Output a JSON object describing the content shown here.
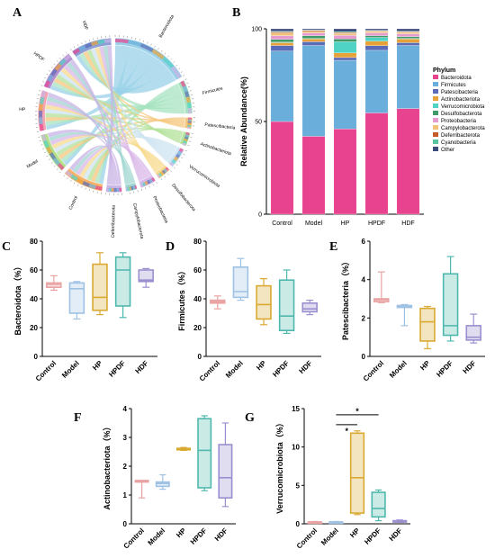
{
  "panel_letters": [
    "A",
    "B",
    "C",
    "D",
    "E",
    "F",
    "G"
  ],
  "chord": {
    "groups": [
      {
        "name": "HDF",
        "color": "#8b9fd6"
      },
      {
        "name": "HPDF",
        "color": "#b58ecf"
      },
      {
        "name": "HP",
        "color": "#f4a3b2"
      },
      {
        "name": "Model",
        "color": "#b4e08a"
      },
      {
        "name": "Control",
        "color": "#f6b26b"
      }
    ],
    "taxa": [
      {
        "name": "Bacteroidota",
        "color": "#9ad1e8"
      },
      {
        "name": "Firmicutes",
        "color": "#a7e3c0"
      },
      {
        "name": "Patescibacteria",
        "color": "#f5c77e"
      },
      {
        "name": "Actinobacteriota",
        "color": "#b3e29b"
      },
      {
        "name": "Verrucomicrobiota",
        "color": "#cfe4f2"
      },
      {
        "name": "Desulfobacterota",
        "color": "#f7d98c"
      },
      {
        "name": "Proteobacteria",
        "color": "#d9b7e8"
      },
      {
        "name": "Campylobacterota",
        "color": "#9fd6d0"
      },
      {
        "name": "Deferribacterota",
        "color": "#c9b3e6"
      }
    ]
  },
  "stacked": {
    "ylabel": "Relative Abundance(%)",
    "legend_title": "Phylum",
    "yticks": [
      0,
      50,
      100
    ],
    "categories": [
      "Control",
      "Model",
      "HP",
      "HPDF",
      "HDF"
    ],
    "series": [
      {
        "name": "Bacteroidota",
        "color": "#e8438f",
        "values": [
          50,
          42,
          46,
          55,
          57
        ]
      },
      {
        "name": "Firmicutes",
        "color": "#6aaedb",
        "values": [
          38,
          49,
          37,
          34,
          34
        ]
      },
      {
        "name": "Patescibacteria",
        "color": "#5a6bb8",
        "values": [
          3,
          2,
          1.5,
          2.5,
          1.5
        ]
      },
      {
        "name": "Actinobacteriota",
        "color": "#e7a23a",
        "values": [
          1.5,
          1.5,
          2.5,
          2.5,
          2
        ]
      },
      {
        "name": "Verrucomicrobiota",
        "color": "#4fd3c4",
        "values": [
          0.3,
          0.3,
          6,
          2,
          0.3
        ]
      },
      {
        "name": "Desulfobacterota",
        "color": "#3f9a68",
        "values": [
          1.5,
          1.5,
          1.5,
          1,
          1
        ]
      },
      {
        "name": "Proteobacteria",
        "color": "#e59bd0",
        "values": [
          2,
          1.5,
          2,
          1.5,
          1.5
        ]
      },
      {
        "name": "Campylobacterota",
        "color": "#f2c27a",
        "values": [
          1.5,
          0.8,
          1,
          0.8,
          0.8
        ]
      },
      {
        "name": "Deferribacterota",
        "color": "#c45a2a",
        "values": [
          0.5,
          0.5,
          0.5,
          0.3,
          0.3
        ]
      },
      {
        "name": "Cyanobacteria",
        "color": "#57c6a0",
        "values": [
          0.4,
          0.3,
          0.5,
          0.3,
          0.3
        ]
      },
      {
        "name": "Other",
        "color": "#3a4a7a",
        "values": [
          1.3,
          0.6,
          1.5,
          0.8,
          1.3
        ]
      }
    ]
  },
  "groups": [
    "Control",
    "Model",
    "HP",
    "HPDF",
    "HDF"
  ],
  "group_colors": [
    "#e9a3a3",
    "#9fc2e4",
    "#d9a931",
    "#4fb8ad",
    "#9c8fd0"
  ],
  "box_panels": [
    {
      "ylabel": "Bacteroidota（%）",
      "ylim": [
        0,
        80
      ],
      "yticks": [
        0,
        20,
        40,
        60,
        80
      ],
      "boxes": [
        [
          46,
          48,
          50,
          51,
          56
        ],
        [
          26,
          30,
          47,
          51,
          52
        ],
        [
          29,
          32,
          41,
          64,
          72
        ],
        [
          27,
          35,
          60,
          69,
          72
        ],
        [
          48,
          52,
          53,
          60,
          61
        ]
      ]
    },
    {
      "ylabel": "Firmicutes（%）",
      "ylim": [
        0,
        80
      ],
      "yticks": [
        0,
        20,
        40,
        60,
        80
      ],
      "boxes": [
        [
          33,
          37,
          38,
          39,
          42
        ],
        [
          39,
          41,
          45,
          62,
          68
        ],
        [
          22,
          26,
          36,
          49,
          54
        ],
        [
          16,
          18,
          28,
          53,
          60
        ],
        [
          29,
          31,
          33,
          37,
          39
        ]
      ]
    },
    {
      "ylabel": "Patescibacteria（%）",
      "ylim": [
        0,
        6
      ],
      "yticks": [
        0,
        2,
        4,
        6
      ],
      "boxes": [
        [
          2.8,
          2.85,
          2.95,
          3.0,
          4.4
        ],
        [
          1.6,
          2.55,
          2.6,
          2.65,
          2.7
        ],
        [
          0.4,
          0.8,
          1.8,
          2.5,
          2.6
        ],
        [
          0.8,
          1.1,
          1.6,
          4.3,
          5.2
        ],
        [
          0.7,
          0.85,
          1.0,
          1.6,
          2.2
        ]
      ]
    },
    {
      "ylabel": "Actinobacteriota（%）",
      "ylim": [
        0,
        4
      ],
      "yticks": [
        0,
        1,
        2,
        3,
        4
      ],
      "boxes": [
        [
          0.9,
          1.45,
          1.5,
          1.5,
          1.5
        ],
        [
          1.2,
          1.3,
          1.4,
          1.45,
          1.7
        ],
        [
          2.55,
          2.57,
          2.6,
          2.62,
          2.65
        ],
        [
          1.15,
          1.25,
          2.55,
          3.65,
          3.75
        ],
        [
          0.6,
          0.9,
          1.6,
          2.75,
          3.5
        ]
      ]
    },
    {
      "ylabel": "Verrucomicrobiota（%）",
      "ylim": [
        0,
        15
      ],
      "yticks": [
        0,
        5,
        10,
        15
      ],
      "boxes": [
        [
          0.1,
          0.15,
          0.2,
          0.25,
          0.3
        ],
        [
          0.1,
          0.15,
          0.2,
          0.25,
          0.3
        ],
        [
          1.2,
          1.4,
          6.0,
          11.8,
          12.1
        ],
        [
          0.4,
          0.9,
          2.0,
          4.1,
          4.4
        ],
        [
          0.2,
          0.25,
          0.3,
          0.4,
          0.5
        ]
      ],
      "significance": [
        "*",
        "*"
      ]
    }
  ]
}
